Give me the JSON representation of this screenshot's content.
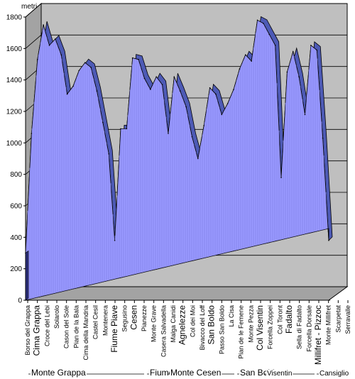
{
  "chart_data": {
    "type": "area",
    "ylabel": "metri s.l.m.",
    "ylim": [
      0,
      1800
    ],
    "yticks": [
      0,
      200,
      400,
      600,
      800,
      1000,
      1200,
      1400,
      1600,
      1800
    ],
    "grid": true,
    "colors": {
      "fill": "#9999ff",
      "ridge": "#4d5ab5",
      "wall": "#bfbfbf",
      "floor": "#a3a3a3"
    },
    "x_labels": [
      {
        "label": "Borso del Grappa",
        "big": false
      },
      {
        "label": "Cima Grappa",
        "big": true
      },
      {
        "label": "Croce del Lebi",
        "big": false
      },
      {
        "label": "Solarolo",
        "big": false
      },
      {
        "label": "Cason del Sole",
        "big": false
      },
      {
        "label": "Pian de la Bala",
        "big": false
      },
      {
        "label": "Cima della Mandria",
        "big": false
      },
      {
        "label": "Castel Cesil",
        "big": false
      },
      {
        "label": "Montenera",
        "big": false
      },
      {
        "label": "Fiume Piave",
        "big": true
      },
      {
        "label": "Segusino",
        "big": false
      },
      {
        "label": "Cesen",
        "big": true
      },
      {
        "label": "Pianezze",
        "big": false
      },
      {
        "label": "Monte Grave",
        "big": false
      },
      {
        "label": "Casera Salvadella",
        "big": false
      },
      {
        "label": "Malga Canidi",
        "big": false
      },
      {
        "label": "Agnelezze",
        "big": true
      },
      {
        "label": "Col dei Moi",
        "big": false
      },
      {
        "label": "Bivacco del Loff",
        "big": false
      },
      {
        "label": "San Boldo",
        "big": true
      },
      {
        "label": "Passo San Boldo",
        "big": false
      },
      {
        "label": "La Cisa",
        "big": false
      },
      {
        "label": "Pian de le Femene",
        "big": false
      },
      {
        "label": "Monte Pezza",
        "big": false
      },
      {
        "label": "Col Visentin",
        "big": true
      },
      {
        "label": "Forcella Zoppei",
        "big": false
      },
      {
        "label": "Col Toront",
        "big": false
      },
      {
        "label": "Fadalto",
        "big": true
      },
      {
        "label": "Sella di Fadalto",
        "big": false
      },
      {
        "label": "Forcella Dorsale",
        "big": false
      },
      {
        "label": "Millifret - Pizzoc",
        "big": true
      },
      {
        "label": "Monte Millifret",
        "big": false
      },
      {
        "label": "Scarpetat",
        "big": false
      },
      {
        "label": "Serravalle",
        "big": false
      }
    ],
    "series": [
      {
        "values": [
          300,
          1060,
          1530,
          1750,
          1620,
          1660,
          1560,
          1310,
          1360,
          1460,
          1510,
          1480,
          1330,
          1130,
          930,
          380,
          1090,
          1090,
          1540,
          1530,
          1410,
          1340,
          1420,
          1370,
          1060,
          1420,
          1330,
          1230,
          1040,
          900,
          1110,
          1350,
          1310,
          1180,
          1250,
          1340,
          1470,
          1560,
          1520,
          1780,
          1760,
          1690,
          1620,
          780,
          1450,
          1580,
          1420,
          1180,
          1620,
          1590,
          1030,
          380
        ]
      }
    ],
    "regions": [
      {
        "label": "Monte Grappa",
        "small": false
      },
      {
        "label": "Fiume Piave",
        "small": false
      },
      {
        "label": "Monte Cesen",
        "small": false
      },
      {
        "label": "San Boldo",
        "small": false
      },
      {
        "label": "Visentin",
        "small": true
      },
      {
        "label": "Cansiglio",
        "small": true
      }
    ]
  }
}
